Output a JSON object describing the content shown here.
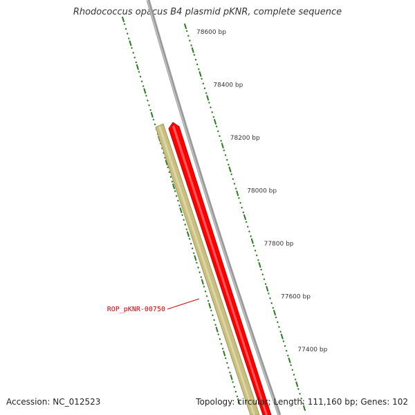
{
  "title": "Rhodococcus opacus B4 plasmid pKNR, complete sequence",
  "footer": {
    "accession": "Accession: NC_012523",
    "summary": "Topology: circular; Length: 111,160 bp; Genes: 102"
  },
  "colors": {
    "backbone": "#888888",
    "tick": "#2a7a1f",
    "gene_forward": "#ff0000",
    "gene_reverse": "#c8bf80",
    "label_text": "#cc0000",
    "scale_text": "#333333"
  },
  "scale_labels": [
    "78600 bp",
    "78400 bp",
    "78200 bp",
    "78000 bp",
    "77800 bp",
    "77600 bp",
    "77400 bp"
  ],
  "genes": [
    {
      "id": "ROP_pKNR-00750",
      "label": "ROP_pKNR-00750",
      "strand": "reverse"
    },
    {
      "id": "gene-forward",
      "label": "",
      "strand": "forward"
    }
  ]
}
